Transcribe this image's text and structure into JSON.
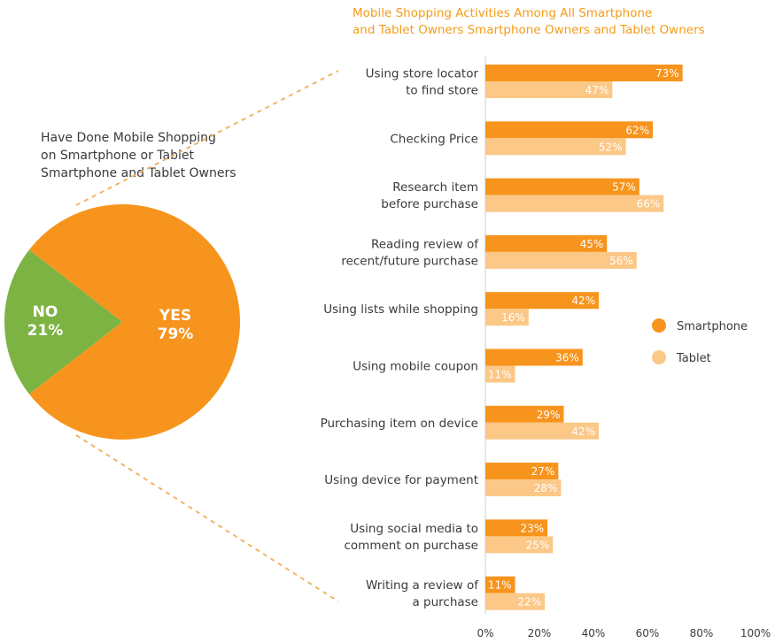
{
  "colors": {
    "smartphone": "#f7941d",
    "tablet": "#fbc887",
    "yes": "#f7941d",
    "no": "#7cb342",
    "title": "#f39c1a",
    "label": "#3a3a3a",
    "connector": "#f2b467"
  },
  "chart_data": [
    {
      "type": "pie",
      "title_lines": [
        "Have Done Mobile Shopping",
        "on Smartphone or Tablet",
        "Smartphone and Tablet Owners"
      ],
      "slices": [
        {
          "label": "YES",
          "value": 79,
          "value_label": "79%"
        },
        {
          "label": "NO",
          "value": 21,
          "value_label": "21%"
        }
      ]
    },
    {
      "type": "bar",
      "orientation": "horizontal",
      "title_lines": [
        "Mobile Shopping Activities Among All Smartphone",
        "and Tablet Owners Smartphone Owners and Tablet Owners"
      ],
      "categories": [
        [
          "Using store locator",
          "to find store"
        ],
        [
          "Checking Price"
        ],
        [
          "Research item",
          "before purchase"
        ],
        [
          "Reading review of",
          "recent/future purchase"
        ],
        [
          "Using lists while shopping"
        ],
        [
          "Using mobile coupon"
        ],
        [
          "Purchasing item on device"
        ],
        [
          "Using device for payment"
        ],
        [
          "Using social media to",
          "comment on purchase"
        ],
        [
          "Writing a review of",
          "a purchase"
        ]
      ],
      "series": [
        {
          "name": "Smartphone",
          "values": [
            73,
            62,
            57,
            45,
            42,
            36,
            29,
            27,
            23,
            11
          ]
        },
        {
          "name": "Tablet",
          "values": [
            47,
            52,
            66,
            56,
            16,
            11,
            42,
            28,
            25,
            22
          ]
        }
      ],
      "xlim": [
        0,
        100
      ],
      "xticks": [
        "0%",
        "20%",
        "40%",
        "60%",
        "80%",
        "100%"
      ],
      "legend_position": "right"
    }
  ]
}
